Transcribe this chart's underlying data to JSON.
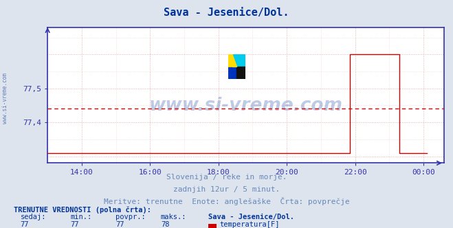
{
  "title": "Sava - Jesenice/Dol.",
  "title_color": "#003399",
  "fig_bg_color": "#dde4ee",
  "plot_bg_color": "#ffffff",
  "grid_color": "#e8b0b0",
  "axis_color": "#3333aa",
  "tick_color": "#3333aa",
  "ylabel_color": "#3333aa",
  "xlabel_color": "#3333aa",
  "watermark": "www.si-vreme.com",
  "watermark_color": "#003399",
  "subtitle1": "Slovenija / reke in morje.",
  "subtitle2": "zadnjih 12ur / 5 minut.",
  "subtitle3": "Meritve: trenutne  Enote: anglešaške  Črta: povprečje",
  "subtitle_color": "#6688bb",
  "footer_label": "TRENUTNE VREDNOSTI (polna črta):",
  "footer_color": "#003399",
  "footer_cols": [
    "sedaj:",
    "min.:",
    "povpr.:",
    "maks.:"
  ],
  "footer_values": [
    "77",
    "77",
    "77",
    "78"
  ],
  "footer_series": "Sava - Jesenice/Dol.",
  "footer_legend_label": "temperatura[F]",
  "footer_legend_color": "#cc0000",
  "ylim": [
    77.28,
    77.68
  ],
  "yticks": [
    77.4,
    77.5
  ],
  "ytick_labels": [
    "77,4",
    "77,5"
  ],
  "xtick_labels": [
    "14:00",
    "16:00",
    "18:00",
    "20:00",
    "22:00",
    "00:00"
  ],
  "xtick_positions": [
    14,
    16,
    18,
    20,
    22,
    24
  ],
  "xlim": [
    13.0,
    24.6
  ],
  "avg_line_y": 77.44,
  "avg_line_color": "#dd0000",
  "data_line_color": "#cc0000",
  "data_flat_y": 77.6,
  "data_rise_start_x": 21.9,
  "data_rise_top_y": 77.625,
  "data_rise_end_x": 22.15,
  "data_drop_x": 23.35,
  "data_drop_y": 77.31,
  "data_end_x": 24.1,
  "sidewater_text": "www.si-vreme.com",
  "sidewater_color": "#4466aa",
  "logo_yellow": "#ffdd00",
  "logo_cyan": "#00ccee",
  "logo_blue": "#0033bb",
  "logo_black": "#111111"
}
